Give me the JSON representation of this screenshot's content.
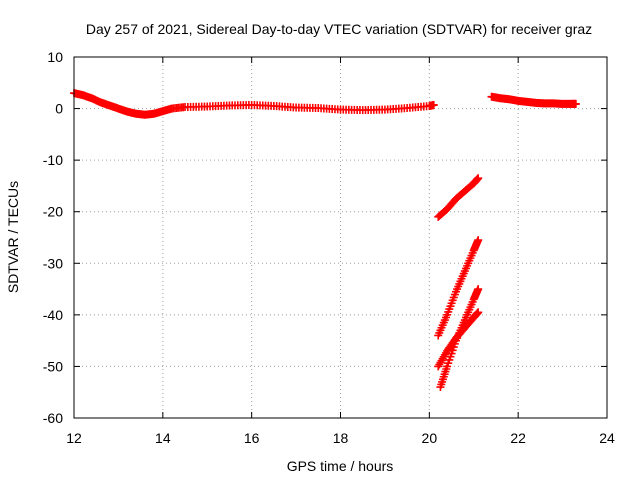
{
  "chart_data": {
    "type": "scatter",
    "title": "Day 257 of 2021, Sidereal Day-to-day VTEC variation (SDTVAR) for receiver graz",
    "xlabel": "GPS time / hours",
    "ylabel": "SDTVAR / TECUs",
    "xlim": [
      12,
      24
    ],
    "ylim": [
      -60,
      10
    ],
    "xticks": [
      12,
      14,
      16,
      18,
      20,
      22,
      24
    ],
    "yticks": [
      10,
      0,
      -10,
      -20,
      -30,
      -40,
      -50,
      -60
    ],
    "grid": true,
    "marker": "+",
    "color": "#ff0000",
    "series": [
      {
        "x": [
          12.0,
          12.2,
          12.4,
          12.6,
          12.8,
          13.0,
          13.2,
          13.4,
          13.6,
          13.8,
          14.0,
          14.2,
          14.5,
          15.0,
          15.5,
          16.0,
          16.5,
          17.0,
          17.5,
          18.0,
          18.5,
          19.0,
          19.5,
          20.0,
          20.1
        ],
        "y": [
          3.0,
          2.6,
          2.0,
          1.2,
          0.6,
          0.0,
          -0.6,
          -1.0,
          -1.2,
          -1.0,
          -0.5,
          0.0,
          0.3,
          0.4,
          0.6,
          0.7,
          0.5,
          0.2,
          0.1,
          -0.2,
          -0.3,
          -0.2,
          0.1,
          0.5,
          0.7
        ]
      },
      {
        "x": [
          21.4,
          21.6,
          21.8,
          22.0,
          22.2,
          22.4,
          22.6,
          22.8,
          23.0,
          23.2,
          23.3
        ],
        "y": [
          2.3,
          2.0,
          1.8,
          1.5,
          1.3,
          1.1,
          1.0,
          1.0,
          0.9,
          0.9,
          0.9
        ]
      },
      {
        "x": [
          20.2,
          20.4,
          20.6,
          20.8,
          21.0,
          21.1
        ],
        "y": [
          -21.0,
          -19.5,
          -17.5,
          -16.0,
          -14.5,
          -13.5
        ]
      },
      {
        "x": [
          20.2,
          20.4,
          20.6,
          20.8,
          21.0,
          21.1
        ],
        "y": [
          -44.0,
          -40.0,
          -35.5,
          -31.5,
          -27.5,
          -25.5
        ]
      },
      {
        "x": [
          20.2,
          20.4,
          20.6,
          20.8,
          21.0,
          21.1
        ],
        "y": [
          -50.0,
          -47.0,
          -44.5,
          -42.5,
          -40.5,
          -39.5
        ]
      },
      {
        "x": [
          20.25,
          20.4,
          20.6,
          20.8,
          21.0,
          21.1
        ],
        "y": [
          -54.0,
          -50.0,
          -45.0,
          -41.0,
          -37.0,
          -35.0
        ]
      }
    ]
  }
}
